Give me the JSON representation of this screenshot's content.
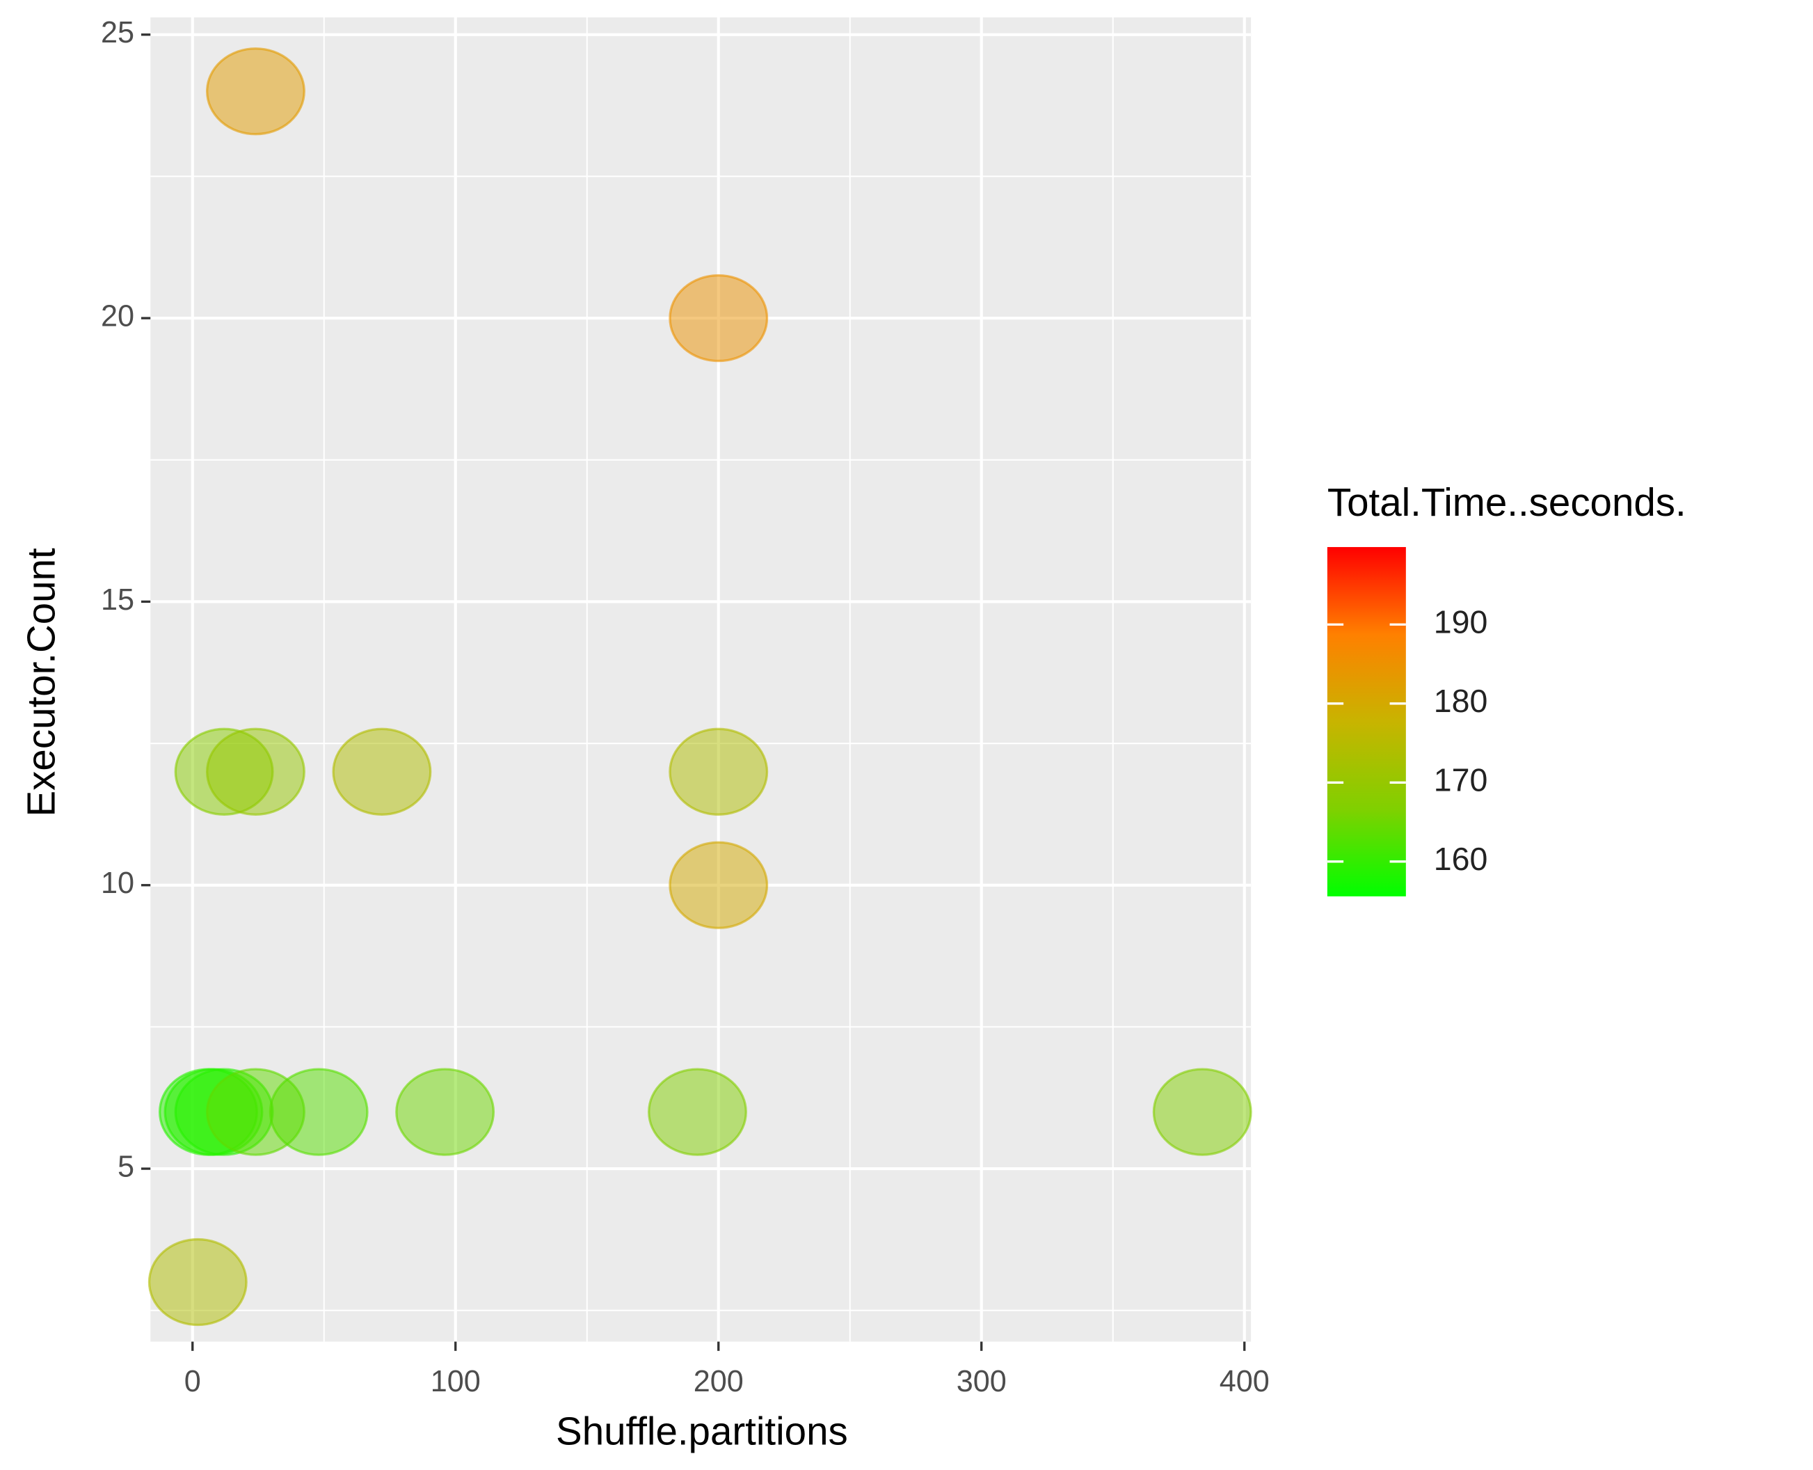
{
  "chart_data": {
    "type": "scatter",
    "x_label": "Shuffle.partitions",
    "y_label": "Executor.Count",
    "x": [
      24,
      200,
      12,
      24,
      72,
      200,
      200,
      2,
      6,
      8,
      12,
      24,
      48,
      96,
      192,
      384
    ],
    "values": [
      24,
      20,
      12,
      12,
      12,
      12,
      10,
      3,
      6,
      6,
      6,
      6,
      6,
      6,
      6,
      6
    ],
    "color_values": [
      183,
      185,
      168,
      170,
      174,
      174,
      180,
      174,
      159,
      159,
      159,
      164,
      163,
      165,
      167,
      167
    ],
    "xlim": [
      -16,
      402.5
    ],
    "xticks": [
      0,
      100,
      200,
      300,
      400
    ],
    "ylim": [
      1.95,
      25.05
    ],
    "yticks": [
      5,
      10,
      15,
      20,
      25
    ],
    "grid": true,
    "legend": {
      "title": "Total.Time..seconds.",
      "limits": [
        155.6,
        199.8
      ],
      "ticks": [
        160,
        170,
        180,
        190
      ],
      "colors": [
        "#00ff00",
        "#80d000",
        "#c8b400",
        "#ff8000",
        "#ff0000"
      ]
    }
  }
}
